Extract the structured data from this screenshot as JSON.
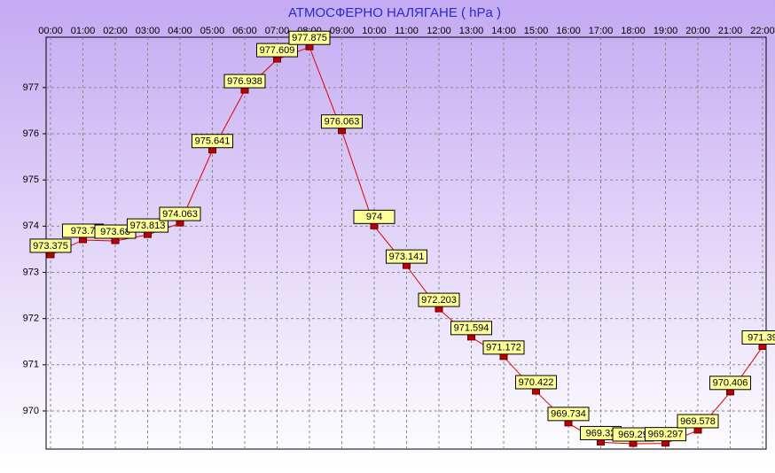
{
  "chart_data": {
    "type": "line",
    "title": "АТМОСФЕРНО НАЛЯГАНЕ  ( hPa )",
    "categories": [
      "00:00",
      "01:00",
      "02:00",
      "03:00",
      "04:00",
      "05:00",
      "06:00",
      "07:00",
      "08:00",
      "09:00",
      "10:00",
      "11:00",
      "12:00",
      "13:00",
      "14:00",
      "15:00",
      "16:00",
      "17:00",
      "18:00",
      "19:00",
      "20:00",
      "21:00",
      "22:00"
    ],
    "series": [
      {
        "name": "hPa",
        "color": "#e00000",
        "values": [
          973.375,
          973.7,
          973.68,
          973.813,
          974.063,
          975.641,
          976.938,
          977.609,
          977.875,
          976.063,
          974,
          973.141,
          972.203,
          971.594,
          971.172,
          970.422,
          969.734,
          969.32,
          969.29,
          969.297,
          969.578,
          970.406,
          971.39
        ]
      }
    ],
    "ylim": [
      969.175,
      978.09
    ],
    "yticks": [
      970,
      971,
      972,
      973,
      974,
      975,
      976,
      977
    ],
    "grid": true
  }
}
